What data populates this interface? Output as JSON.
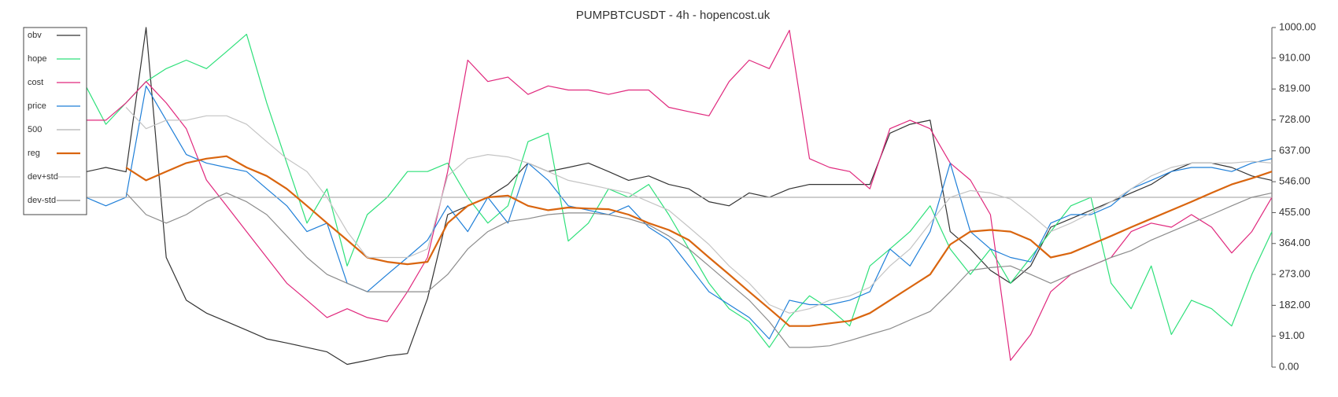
{
  "chart_data": {
    "type": "line",
    "title": "PUMPBTCUSDT - 4h - hopencost.uk",
    "ylim": [
      0,
      1000
    ],
    "yticks": [
      {
        "value": 0,
        "label": "0.00"
      },
      {
        "value": 91,
        "label": "91.00"
      },
      {
        "value": 182,
        "label": "182.00"
      },
      {
        "value": 273,
        "label": "273.00"
      },
      {
        "value": 364,
        "label": "364.00"
      },
      {
        "value": 455,
        "label": "455.00"
      },
      {
        "value": 546,
        "label": "546.00"
      },
      {
        "value": 637,
        "label": "637.00"
      },
      {
        "value": 728,
        "label": "728.00"
      },
      {
        "value": 819,
        "label": "819.00"
      },
      {
        "value": 910,
        "label": "910.00"
      },
      {
        "value": 1000,
        "label": "1000.00"
      }
    ],
    "legend": "upper left",
    "series": [
      {
        "name": "obv",
        "color": "#333333",
        "values": [
          575,
          588,
          575,
          1000,
          323,
          197,
          159,
          134,
          109,
          83,
          71,
          58,
          45,
          8,
          20,
          33,
          40,
          202,
          449,
          475,
          500,
          538,
          601,
          576,
          588,
          601,
          576,
          550,
          563,
          538,
          525,
          487,
          475,
          513,
          500,
          525,
          538,
          538,
          538,
          538,
          689,
          715,
          727,
          399,
          348,
          285,
          247,
          298,
          412,
          437,
          462,
          487,
          513,
          538,
          576,
          601,
          601,
          588,
          563,
          550
        ]
      },
      {
        "name": "hope",
        "color": "#2ee07a",
        "values": [
          828,
          715,
          778,
          841,
          879,
          904,
          879,
          929,
          980,
          778,
          601,
          424,
          525,
          298,
          449,
          500,
          576,
          576,
          601,
          500,
          424,
          475,
          664,
          689,
          371,
          424,
          525,
          500,
          538,
          449,
          348,
          247,
          172,
          134,
          58,
          146,
          210,
          172,
          121,
          298,
          348,
          399,
          475,
          348,
          273,
          348,
          247,
          323,
          399,
          475,
          500,
          247,
          172,
          298,
          96,
          197,
          172,
          121,
          273,
          399
        ]
      },
      {
        "name": "cost",
        "color": "#e0287d",
        "values": [
          727,
          727,
          778,
          841,
          778,
          702,
          551,
          475,
          399,
          323,
          247,
          197,
          146,
          172,
          146,
          134,
          222,
          323,
          576,
          904,
          841,
          854,
          803,
          828,
          816,
          816,
          803,
          816,
          816,
          765,
          752,
          740,
          841,
          904,
          879,
          992,
          614,
          588,
          576,
          525,
          702,
          727,
          702,
          601,
          551,
          449,
          20,
          96,
          222,
          273,
          298,
          323,
          399,
          424,
          412,
          449,
          412,
          336,
          399,
          500
        ]
      },
      {
        "name": "price",
        "color": "#1f7fd8",
        "values": [
          500,
          475,
          500,
          828,
          727,
          626,
          601,
          588,
          576,
          525,
          475,
          399,
          424,
          247,
          222,
          273,
          323,
          374,
          475,
          399,
          500,
          424,
          601,
          550,
          475,
          462,
          449,
          475,
          412,
          374,
          298,
          222,
          184,
          146,
          83,
          197,
          184,
          184,
          197,
          222,
          348,
          298,
          399,
          601,
          399,
          348,
          323,
          310,
          424,
          449,
          449,
          475,
          525,
          550,
          576,
          588,
          588,
          576,
          601,
          614
        ]
      },
      {
        "name": "500",
        "color": "#b0b0b0",
        "values": [
          500,
          500,
          500,
          500,
          500,
          500,
          500,
          500,
          500,
          500,
          500,
          500,
          500,
          500,
          500,
          500,
          500,
          500,
          500,
          500,
          500,
          500,
          500,
          500,
          500,
          500,
          500,
          500,
          500,
          500,
          500,
          500,
          500,
          500,
          500,
          500,
          500,
          500,
          500,
          500,
          500,
          500,
          500,
          500,
          500,
          500,
          500,
          500,
          500,
          500,
          500,
          500,
          500,
          500,
          500,
          500,
          500,
          500,
          500,
          500
        ]
      },
      {
        "name": "reg",
        "color": "#d9650f",
        "values": [
          null,
          null,
          588,
          550,
          576,
          601,
          614,
          621,
          588,
          563,
          525,
          475,
          424,
          374,
          323,
          310,
          303,
          310,
          424,
          475,
          500,
          505,
          475,
          462,
          470,
          467,
          465,
          449,
          424,
          404,
          374,
          323,
          273,
          222,
          172,
          121,
          121,
          129,
          136,
          159,
          197,
          235,
          273,
          361,
          399,
          404,
          399,
          374,
          323,
          336,
          361,
          386,
          412,
          437,
          462,
          487,
          513,
          538,
          556,
          576
        ]
      },
      {
        "name": "dev+std",
        "color": "#c4c4c4",
        "values": [
          null,
          null,
          765,
          702,
          727,
          727,
          740,
          740,
          715,
          664,
          614,
          576,
          500,
          399,
          323,
          323,
          323,
          348,
          563,
          614,
          626,
          619,
          601,
          576,
          550,
          538,
          525,
          513,
          487,
          462,
          412,
          361,
          298,
          247,
          184,
          159,
          172,
          197,
          210,
          235,
          298,
          348,
          424,
          500,
          520,
          513,
          495,
          449,
          399,
          424,
          454,
          487,
          525,
          563,
          588,
          601,
          601,
          601,
          606,
          601
        ]
      },
      {
        "name": "dev-std",
        "color": "#8c8c8c",
        "values": [
          null,
          null,
          513,
          449,
          424,
          449,
          487,
          513,
          487,
          449,
          386,
          323,
          273,
          247,
          222,
          222,
          222,
          222,
          273,
          348,
          399,
          429,
          437,
          449,
          454,
          454,
          449,
          437,
          419,
          386,
          348,
          298,
          247,
          197,
          134,
          58,
          58,
          63,
          78,
          96,
          113,
          139,
          164,
          222,
          285,
          293,
          298,
          273,
          247,
          273,
          298,
          323,
          343,
          374,
          399,
          424,
          449,
          475,
          500,
          513
        ]
      }
    ]
  }
}
